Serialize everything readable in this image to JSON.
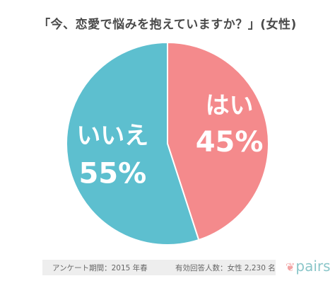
{
  "chart_data": {
    "type": "pie",
    "title": "「今、恋愛で悩みを抱えていますか？」(女性)",
    "slices": [
      {
        "label": "はい",
        "value": 45,
        "value_label": "45%",
        "color": "#f48a8c"
      },
      {
        "label": "いいえ",
        "value": 55,
        "value_label": "55%",
        "color": "#5dbfcf"
      }
    ],
    "start": "12 o'clock",
    "direction": "clockwise"
  },
  "footer": {
    "period": "アンケート期間：2015 年春",
    "respondents": "有効回答人数：女性 2,230 名"
  },
  "brand": {
    "logo_text": "pairs",
    "logo_icon": "leaf-icon"
  },
  "colors": {
    "yes": "#f48a8c",
    "no": "#5dbfcf",
    "footer_bg": "#eeeeee"
  }
}
